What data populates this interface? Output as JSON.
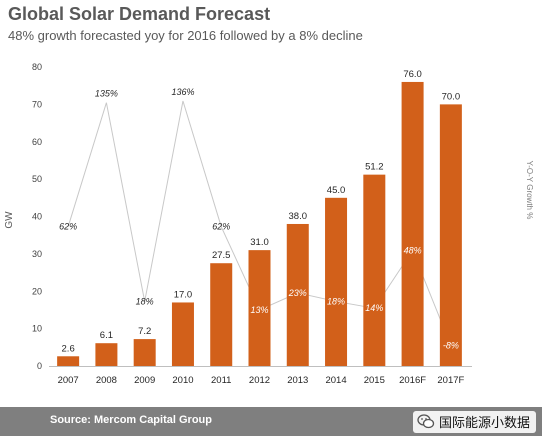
{
  "header": {
    "title": "Global Solar Demand Forecast",
    "subtitle": "48% growth forecasted yoy for 2016  followed by a 8% decline"
  },
  "footer": {
    "source": "Source: Mercom Capital Group",
    "watermark": "国际能源小数据",
    "watermark_icon": "wechat-icon"
  },
  "colors": {
    "bar": "#D2601A",
    "line": "#c8c8c8",
    "axis": "#bfbfbf",
    "footer": "#7f7f7f"
  },
  "chart_data": {
    "type": "bar",
    "categories": [
      "2007",
      "2008",
      "2009",
      "2010",
      "2011",
      "2012",
      "2013",
      "2014",
      "2015",
      "2016F",
      "2017F"
    ],
    "values": [
      2.6,
      6.1,
      7.2,
      17.0,
      27.5,
      31.0,
      38.0,
      45.0,
      51.2,
      76.0,
      70.0
    ],
    "value_labels": [
      "2.6",
      "6.1",
      "7.2",
      "17.0",
      "27.5",
      "31.0",
      "38.0",
      "45.0",
      "51.2",
      "76.0",
      "70.0"
    ],
    "ylabel": "GW",
    "y2label": "Y-O-Y Growth %",
    "ylim": [
      0,
      80
    ],
    "yticks": [
      "0",
      "10",
      "20",
      "30",
      "40",
      "50",
      "60",
      "70",
      "80"
    ],
    "growth": {
      "type": "line",
      "values": [
        62,
        135,
        18,
        136,
        62,
        13,
        23,
        18,
        14,
        48,
        -8
      ],
      "labels": [
        "62%",
        "135%",
        "18%",
        "136%",
        "62%",
        "13%",
        "23%",
        "18%",
        "14%",
        "48%",
        "-8%"
      ],
      "ylim": [
        -20,
        156
      ]
    }
  }
}
